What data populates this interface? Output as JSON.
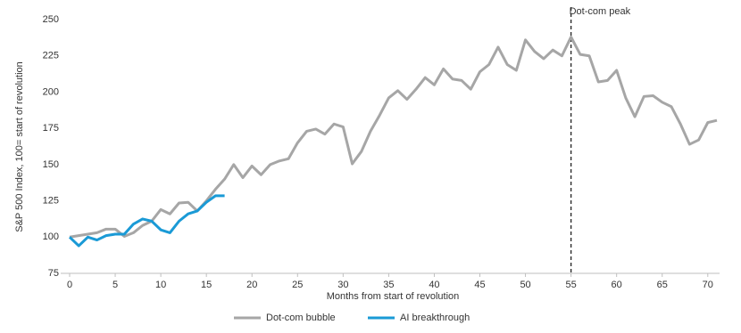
{
  "chart_data": {
    "type": "line",
    "y_label": "S&P 500 Index, 100= start of revolution",
    "x_label": "Months from start of revolution",
    "x": [
      0,
      1,
      2,
      3,
      4,
      5,
      6,
      7,
      8,
      9,
      10,
      11,
      12,
      13,
      14,
      15,
      16,
      17,
      18,
      19,
      20,
      21,
      22,
      23,
      24,
      25,
      26,
      27,
      28,
      29,
      30,
      31,
      32,
      33,
      34,
      35,
      36,
      37,
      38,
      39,
      40,
      41,
      42,
      43,
      44,
      45,
      46,
      47,
      48,
      49,
      50,
      51,
      52,
      53,
      54,
      55,
      56,
      57,
      58,
      59,
      60,
      61,
      62,
      63,
      64,
      65,
      66,
      67,
      68,
      69,
      70,
      71
    ],
    "series": [
      {
        "name": "Dot-com bubble",
        "color": "#a6a6a6",
        "values": [
          100,
          101,
          102,
          103,
          105.5,
          105.5,
          100.5,
          103,
          108,
          111,
          119,
          116,
          123.5,
          124,
          118,
          125,
          133,
          140,
          150,
          141,
          149,
          143,
          150,
          152.5,
          154,
          165,
          173,
          174.5,
          171,
          178,
          176,
          150.5,
          159,
          173,
          184,
          196,
          201,
          195,
          202,
          210,
          205,
          216,
          209,
          208,
          202,
          214,
          219,
          231,
          219,
          215,
          236,
          228,
          223,
          229,
          225,
          238,
          226,
          225,
          207,
          208,
          215,
          196,
          183,
          197,
          197.5,
          193,
          190,
          178,
          164,
          167,
          179,
          180.5
        ]
      },
      {
        "name": "AI breakthrough",
        "color": "#1a9ad6",
        "values": [
          100,
          94,
          100,
          98,
          101,
          102,
          102,
          109,
          112.5,
          111,
          105,
          103,
          111,
          116,
          118,
          124,
          128.5,
          128.5,
          null,
          null,
          null,
          null,
          null,
          null,
          null,
          null,
          null,
          null,
          null,
          null,
          null,
          null,
          null,
          null,
          null,
          null,
          null,
          null,
          null,
          null,
          null,
          null,
          null,
          null,
          null,
          null,
          null,
          null,
          null,
          null,
          null,
          null,
          null,
          null,
          null,
          null,
          null,
          null,
          null,
          null,
          null,
          null,
          null,
          null,
          null,
          null,
          null,
          null,
          null,
          null,
          null,
          null
        ]
      }
    ],
    "xlim": [
      0,
      71
    ],
    "xticks": [
      0,
      5,
      10,
      15,
      20,
      25,
      30,
      35,
      40,
      45,
      50,
      55,
      60,
      65,
      70
    ],
    "ylim": [
      75,
      250
    ],
    "yticks": [
      75,
      100,
      125,
      150,
      175,
      200,
      225,
      250
    ],
    "annotation": {
      "text": "Dot-com peak",
      "x": 55
    }
  }
}
